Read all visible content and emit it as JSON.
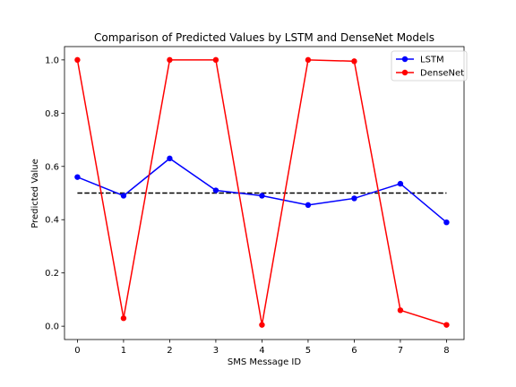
{
  "chart_data": {
    "type": "line",
    "title": "Comparison of Predicted Values by LSTM and DenseNet Models",
    "xlabel": "SMS Message ID",
    "ylabel": "Predicted Value",
    "x": [
      0,
      1,
      2,
      3,
      4,
      5,
      6,
      7,
      8
    ],
    "xlim": [
      -0.28,
      8.38
    ],
    "ylim": [
      -0.05,
      1.05
    ],
    "x_ticks": [
      "0",
      "1",
      "2",
      "3",
      "4",
      "5",
      "6",
      "7",
      "8"
    ],
    "y_ticks": [
      "0.0",
      "0.2",
      "0.4",
      "0.6",
      "0.8",
      "1.0"
    ],
    "series": [
      {
        "name": "LSTM",
        "color": "#0000ff",
        "values": [
          0.56,
          0.49,
          0.63,
          0.51,
          0.49,
          0.455,
          0.48,
          0.535,
          0.39
        ]
      },
      {
        "name": "DenseNet",
        "color": "#ff0000",
        "values": [
          1.0,
          0.03,
          1.0,
          1.0,
          0.005,
          1.0,
          0.995,
          0.06,
          0.005
        ]
      }
    ],
    "threshold": {
      "value": 0.5,
      "x_range": [
        0,
        8
      ],
      "style": "dashed",
      "color": "#000000"
    },
    "legend": "top-right",
    "grid": false
  }
}
